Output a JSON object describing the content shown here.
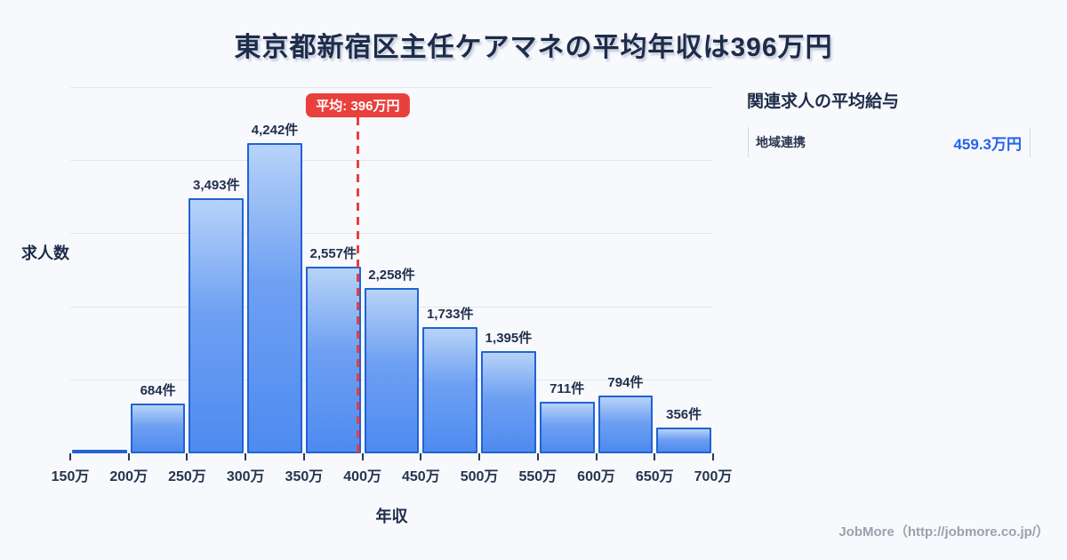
{
  "title": "東京都新宿区主任ケアマネの平均年収は396万円",
  "chart_data": {
    "type": "bar",
    "title": "東京都新宿区主任ケアマネの平均年収は396万円",
    "xlabel": "年収",
    "ylabel": "求人数",
    "bin_edge_labels": [
      "150万",
      "200万",
      "250万",
      "300万",
      "350万",
      "400万",
      "450万",
      "500万",
      "550万",
      "600万",
      "650万",
      "700万"
    ],
    "values": [
      40,
      684,
      3493,
      4242,
      2557,
      2258,
      1733,
      1395,
      711,
      794,
      356
    ],
    "bar_labels": [
      "",
      "684件",
      "3,493件",
      "4,242件",
      "2,557件",
      "2,258件",
      "1,733件",
      "1,395件",
      "711件",
      "794件",
      "356件"
    ],
    "ylim": [
      0,
      5110
    ],
    "gridline_values": [
      1000,
      2000,
      3000,
      4000,
      5000
    ],
    "grid": true,
    "average": {
      "value": 396,
      "label": "平均: 396万円",
      "x_min": 150,
      "x_max": 700
    },
    "colors": {
      "bar_fill_top": "#b7d3f8",
      "bar_fill_bottom": "#4e8bf0",
      "bar_border": "#2262d3",
      "average_red": "#e8403c",
      "gridline": "#e2e8f0",
      "text_dark": "#1e2b49",
      "background": "#f7f9fc"
    }
  },
  "side_panel": {
    "heading": "関連求人の平均給与",
    "rows": [
      {
        "label": "地域連携",
        "value": "459.3万円"
      }
    ]
  },
  "footer": {
    "brand": "JobMore（http://jobmore.co.jp/）"
  }
}
